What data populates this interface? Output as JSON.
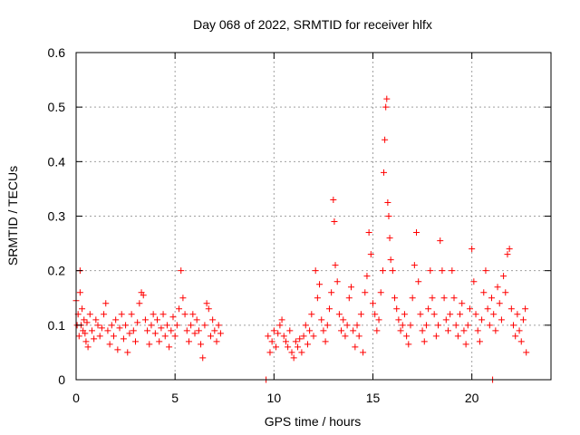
{
  "chart_data": {
    "type": "scatter",
    "title": "Day 068 of 2022, SRMTID for receiver hlfx",
    "xlabel": "GPS time / hours",
    "ylabel": "SRMTID / TECUs",
    "xlim": [
      0,
      24
    ],
    "ylim": [
      0,
      0.6
    ],
    "xticks": [
      0,
      5,
      10,
      15,
      20
    ],
    "xtick_labels": [
      "0",
      "5",
      "10",
      "15",
      "20"
    ],
    "yticks": [
      0,
      0.1,
      0.2,
      0.3,
      0.4,
      0.5,
      0.6
    ],
    "ytick_labels": [
      "0",
      "0.1",
      "0.2",
      "0.3",
      "0.4",
      "0.5",
      "0.6"
    ],
    "grid": true,
    "marker": "plus",
    "color": "#ff0000",
    "series": [
      {
        "name": "SRMTID",
        "points": [
          [
            0.0,
            0.145
          ],
          [
            0.05,
            0.1
          ],
          [
            0.1,
            0.12
          ],
          [
            0.15,
            0.08
          ],
          [
            0.2,
            0.2
          ],
          [
            0.2,
            0.16
          ],
          [
            0.25,
            0.1
          ],
          [
            0.3,
            0.13
          ],
          [
            0.35,
            0.09
          ],
          [
            0.4,
            0.11
          ],
          [
            0.45,
            0.085
          ],
          [
            0.5,
            0.07
          ],
          [
            0.55,
            0.105
          ],
          [
            0.6,
            0.06
          ],
          [
            0.7,
            0.12
          ],
          [
            0.8,
            0.09
          ],
          [
            0.9,
            0.075
          ],
          [
            1.0,
            0.11
          ],
          [
            1.1,
            0.1
          ],
          [
            1.2,
            0.08
          ],
          [
            1.3,
            0.095
          ],
          [
            1.4,
            0.12
          ],
          [
            1.5,
            0.14
          ],
          [
            1.6,
            0.09
          ],
          [
            1.7,
            0.065
          ],
          [
            1.8,
            0.1
          ],
          [
            1.9,
            0.08
          ],
          [
            2.0,
            0.11
          ],
          [
            2.1,
            0.055
          ],
          [
            2.2,
            0.095
          ],
          [
            2.3,
            0.12
          ],
          [
            2.4,
            0.075
          ],
          [
            2.5,
            0.1
          ],
          [
            2.6,
            0.05
          ],
          [
            2.7,
            0.085
          ],
          [
            2.8,
            0.12
          ],
          [
            2.9,
            0.09
          ],
          [
            3.0,
            0.07
          ],
          [
            3.1,
            0.105
          ],
          [
            3.2,
            0.14
          ],
          [
            3.3,
            0.16
          ],
          [
            3.4,
            0.155
          ],
          [
            3.5,
            0.11
          ],
          [
            3.6,
            0.09
          ],
          [
            3.7,
            0.065
          ],
          [
            3.8,
            0.1
          ],
          [
            3.9,
            0.12
          ],
          [
            4.0,
            0.085
          ],
          [
            4.1,
            0.11
          ],
          [
            4.2,
            0.07
          ],
          [
            4.3,
            0.095
          ],
          [
            4.4,
            0.12
          ],
          [
            4.5,
            0.08
          ],
          [
            4.6,
            0.1
          ],
          [
            4.7,
            0.06
          ],
          [
            4.8,
            0.09
          ],
          [
            4.9,
            0.115
          ],
          [
            5.0,
            0.08
          ],
          [
            5.1,
            0.1
          ],
          [
            5.2,
            0.13
          ],
          [
            5.3,
            0.2
          ],
          [
            5.4,
            0.15
          ],
          [
            5.5,
            0.12
          ],
          [
            5.6,
            0.09
          ],
          [
            5.7,
            0.07
          ],
          [
            5.8,
            0.1
          ],
          [
            5.9,
            0.12
          ],
          [
            6.0,
            0.085
          ],
          [
            6.1,
            0.11
          ],
          [
            6.2,
            0.09
          ],
          [
            6.3,
            0.065
          ],
          [
            6.4,
            0.04
          ],
          [
            6.5,
            0.1
          ],
          [
            6.6,
            0.14
          ],
          [
            6.7,
            0.13
          ],
          [
            6.8,
            0.08
          ],
          [
            6.9,
            0.11
          ],
          [
            7.0,
            0.09
          ],
          [
            7.1,
            0.07
          ],
          [
            7.2,
            0.1
          ],
          [
            7.3,
            0.085
          ],
          [
            9.7,
            0.08
          ],
          [
            9.8,
            0.05
          ],
          [
            9.9,
            0.07
          ],
          [
            10.0,
            0.09
          ],
          [
            10.1,
            0.06
          ],
          [
            10.2,
            0.085
          ],
          [
            10.3,
            0.1
          ],
          [
            10.4,
            0.11
          ],
          [
            10.5,
            0.08
          ],
          [
            10.6,
            0.07
          ],
          [
            10.7,
            0.06
          ],
          [
            10.8,
            0.09
          ],
          [
            10.9,
            0.05
          ],
          [
            11.0,
            0.04
          ],
          [
            11.1,
            0.07
          ],
          [
            11.2,
            0.06
          ],
          [
            11.3,
            0.075
          ],
          [
            11.4,
            0.05
          ],
          [
            11.5,
            0.08
          ],
          [
            11.6,
            0.1
          ],
          [
            11.7,
            0.065
          ],
          [
            11.8,
            0.09
          ],
          [
            11.9,
            0.12
          ],
          [
            12.0,
            0.08
          ],
          [
            12.1,
            0.2
          ],
          [
            12.2,
            0.15
          ],
          [
            12.3,
            0.175
          ],
          [
            12.4,
            0.11
          ],
          [
            12.5,
            0.09
          ],
          [
            12.6,
            0.07
          ],
          [
            12.7,
            0.1
          ],
          [
            12.8,
            0.13
          ],
          [
            12.9,
            0.16
          ],
          [
            13.0,
            0.33
          ],
          [
            13.05,
            0.29
          ],
          [
            13.1,
            0.21
          ],
          [
            13.2,
            0.18
          ],
          [
            13.3,
            0.12
          ],
          [
            13.4,
            0.09
          ],
          [
            13.5,
            0.11
          ],
          [
            13.6,
            0.08
          ],
          [
            13.7,
            0.1
          ],
          [
            13.8,
            0.15
          ],
          [
            13.9,
            0.17
          ],
          [
            14.0,
            0.09
          ],
          [
            14.1,
            0.06
          ],
          [
            14.2,
            0.1
          ],
          [
            14.3,
            0.08
          ],
          [
            14.4,
            0.12
          ],
          [
            14.5,
            0.05
          ],
          [
            14.6,
            0.16
          ],
          [
            14.7,
            0.19
          ],
          [
            14.8,
            0.27
          ],
          [
            14.9,
            0.23
          ],
          [
            15.0,
            0.14
          ],
          [
            15.1,
            0.12
          ],
          [
            15.2,
            0.09
          ],
          [
            15.3,
            0.11
          ],
          [
            15.4,
            0.16
          ],
          [
            15.5,
            0.2
          ],
          [
            15.55,
            0.38
          ],
          [
            15.6,
            0.44
          ],
          [
            15.65,
            0.5
          ],
          [
            15.7,
            0.515
          ],
          [
            15.75,
            0.325
          ],
          [
            15.8,
            0.3
          ],
          [
            15.85,
            0.26
          ],
          [
            15.9,
            0.22
          ],
          [
            16.0,
            0.2
          ],
          [
            16.1,
            0.15
          ],
          [
            16.2,
            0.13
          ],
          [
            16.3,
            0.11
          ],
          [
            16.4,
            0.09
          ],
          [
            16.5,
            0.1
          ],
          [
            16.6,
            0.12
          ],
          [
            16.7,
            0.08
          ],
          [
            16.8,
            0.065
          ],
          [
            16.9,
            0.1
          ],
          [
            17.0,
            0.15
          ],
          [
            17.1,
            0.21
          ],
          [
            17.2,
            0.27
          ],
          [
            17.3,
            0.18
          ],
          [
            17.4,
            0.12
          ],
          [
            17.5,
            0.09
          ],
          [
            17.6,
            0.07
          ],
          [
            17.7,
            0.1
          ],
          [
            17.8,
            0.13
          ],
          [
            17.9,
            0.2
          ],
          [
            18.0,
            0.15
          ],
          [
            18.1,
            0.12
          ],
          [
            18.2,
            0.08
          ],
          [
            18.3,
            0.1
          ],
          [
            18.4,
            0.255
          ],
          [
            18.5,
            0.2
          ],
          [
            18.6,
            0.15
          ],
          [
            18.7,
            0.11
          ],
          [
            18.8,
            0.09
          ],
          [
            18.9,
            0.12
          ],
          [
            19.0,
            0.2
          ],
          [
            19.1,
            0.15
          ],
          [
            19.2,
            0.1
          ],
          [
            19.3,
            0.08
          ],
          [
            19.4,
            0.12
          ],
          [
            19.5,
            0.14
          ],
          [
            19.6,
            0.09
          ],
          [
            19.7,
            0.065
          ],
          [
            19.8,
            0.1
          ],
          [
            19.9,
            0.13
          ],
          [
            20.0,
            0.24
          ],
          [
            20.1,
            0.18
          ],
          [
            20.2,
            0.12
          ],
          [
            20.3,
            0.09
          ],
          [
            20.4,
            0.07
          ],
          [
            20.5,
            0.11
          ],
          [
            20.6,
            0.16
          ],
          [
            20.7,
            0.2
          ],
          [
            20.8,
            0.13
          ],
          [
            20.9,
            0.1
          ],
          [
            21.0,
            0.15
          ],
          [
            21.1,
            0.12
          ],
          [
            21.2,
            0.09
          ],
          [
            21.3,
            0.17
          ],
          [
            21.4,
            0.14
          ],
          [
            21.5,
            0.11
          ],
          [
            21.6,
            0.19
          ],
          [
            21.7,
            0.16
          ],
          [
            21.8,
            0.23
          ],
          [
            21.9,
            0.24
          ],
          [
            22.0,
            0.13
          ],
          [
            22.1,
            0.1
          ],
          [
            22.2,
            0.08
          ],
          [
            22.3,
            0.12
          ],
          [
            22.4,
            0.09
          ],
          [
            22.5,
            0.07
          ],
          [
            22.6,
            0.11
          ],
          [
            22.7,
            0.13
          ],
          [
            22.75,
            0.05
          ],
          [
            9.6,
            0.0
          ],
          [
            21.05,
            0.0
          ]
        ]
      }
    ]
  }
}
